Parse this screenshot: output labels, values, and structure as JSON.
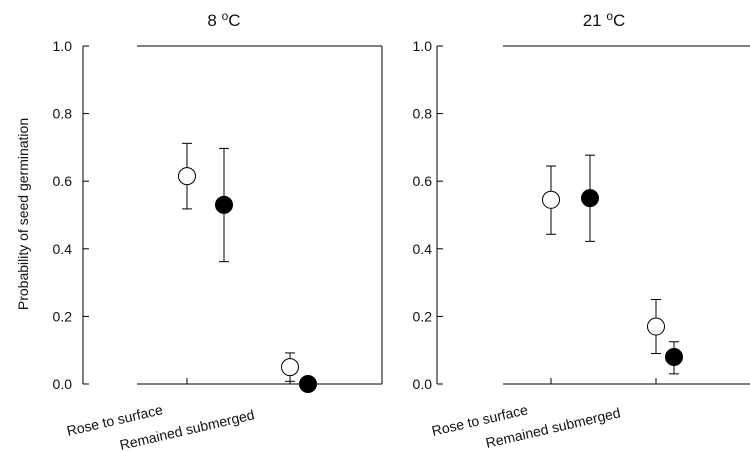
{
  "figure": {
    "ylabel": "Probability of seed germination"
  },
  "chart_data": [
    {
      "type": "scatter",
      "title": "8 °C",
      "title_value": "8",
      "title_unit_sup": "o",
      "title_unit": "C",
      "ylabel": "Probability of seed germination",
      "xlabel": "",
      "ylim": [
        0.0,
        1.0
      ],
      "y_ticks": [
        "0.0",
        "0.2",
        "0.4",
        "0.6",
        "0.8",
        "1.0"
      ],
      "categories": [
        "Rose to surface",
        "Remained submerged"
      ],
      "series": [
        {
          "marker": "open",
          "values": [
            0.615,
            0.05
          ],
          "lower": [
            0.518,
            0.008
          ],
          "upper": [
            0.712,
            0.092
          ]
        },
        {
          "marker": "filled",
          "values": [
            0.53,
            0.0
          ],
          "lower": [
            0.362,
            0.0
          ],
          "upper": [
            0.697,
            0.0
          ]
        }
      ],
      "grid": false,
      "marker_colors": {
        "open": "#ffffff",
        "filled": "#000000",
        "stroke": "#000000"
      }
    },
    {
      "type": "scatter",
      "title": "21 °C",
      "title_value": "21",
      "title_unit_sup": "o",
      "title_unit": "C",
      "ylabel": "",
      "xlabel": "",
      "ylim": [
        0.0,
        1.0
      ],
      "y_ticks": [
        "0.0",
        "0.2",
        "0.4",
        "0.6",
        "0.8",
        "1.0"
      ],
      "categories": [
        "Rose to surface",
        "Remained submerged"
      ],
      "series": [
        {
          "marker": "open",
          "values": [
            0.545,
            0.17
          ],
          "lower": [
            0.443,
            0.09
          ],
          "upper": [
            0.645,
            0.25
          ]
        },
        {
          "marker": "filled",
          "values": [
            0.55,
            0.08
          ],
          "lower": [
            0.422,
            0.03
          ],
          "upper": [
            0.677,
            0.125
          ]
        }
      ],
      "grid": false,
      "marker_colors": {
        "open": "#ffffff",
        "filled": "#000000",
        "stroke": "#000000"
      }
    }
  ]
}
